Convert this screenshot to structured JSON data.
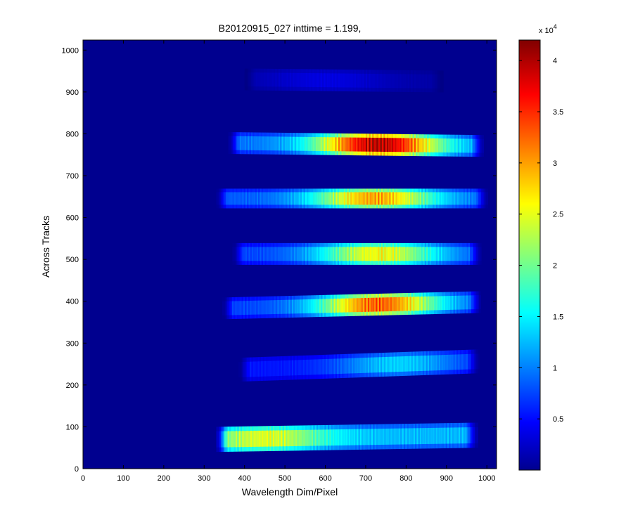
{
  "chart_data": {
    "type": "heatmap",
    "title": "B20120915_027 inttime = 1.199,",
    "xlabel": "Wavelength Dim/Pixel",
    "ylabel": "Across Tracks",
    "xlim": [
      0,
      1024
    ],
    "ylim": [
      0,
      1024
    ],
    "x_ticks": [
      0,
      100,
      200,
      300,
      400,
      500,
      600,
      700,
      800,
      900,
      1000
    ],
    "y_ticks": [
      0,
      100,
      200,
      300,
      400,
      500,
      600,
      700,
      800,
      900,
      1000
    ],
    "colormap": "jet",
    "background_value": 0,
    "colorbar": {
      "range": [
        0,
        42000
      ],
      "ticks": [
        0.5,
        1,
        1.5,
        2,
        2.5,
        3,
        3.5,
        4
      ],
      "exponent_base": "x 10",
      "exponent_power": "4"
    },
    "bands": [
      {
        "name": "band-1",
        "x_start": 330,
        "x_end": 975,
        "y_left": 40,
        "y_right": 50,
        "height": 60,
        "peak_x": 450,
        "peak_value": 25000,
        "edge_value": 13000
      },
      {
        "name": "band-2",
        "x_start": 385,
        "x_end": 980,
        "y_left": 208,
        "y_right": 228,
        "height": 57,
        "peak_x": 780,
        "peak_value": 14000,
        "edge_value": 6000
      },
      {
        "name": "band-3",
        "x_start": 345,
        "x_end": 985,
        "y_left": 357,
        "y_right": 372,
        "height": 52,
        "peak_x": 730,
        "peak_value": 33000,
        "edge_value": 8000
      },
      {
        "name": "band-4",
        "x_start": 370,
        "x_end": 985,
        "y_left": 487,
        "y_right": 487,
        "height": 52,
        "peak_x": 730,
        "peak_value": 26000,
        "edge_value": 8000
      },
      {
        "name": "band-5",
        "x_start": 330,
        "x_end": 1000,
        "y_left": 622,
        "y_right": 622,
        "height": 47,
        "peak_x": 720,
        "peak_value": 30000,
        "edge_value": 9000
      },
      {
        "name": "band-6",
        "x_start": 360,
        "x_end": 990,
        "y_left": 752,
        "y_right": 745,
        "height": 52,
        "peak_x": 730,
        "peak_value": 40000,
        "edge_value": 10000
      },
      {
        "name": "band-7",
        "x_start": 400,
        "x_end": 890,
        "y_left": 904,
        "y_right": 899,
        "height": 52,
        "peak_x": 600,
        "peak_value": 4000,
        "edge_value": 1500
      }
    ]
  }
}
